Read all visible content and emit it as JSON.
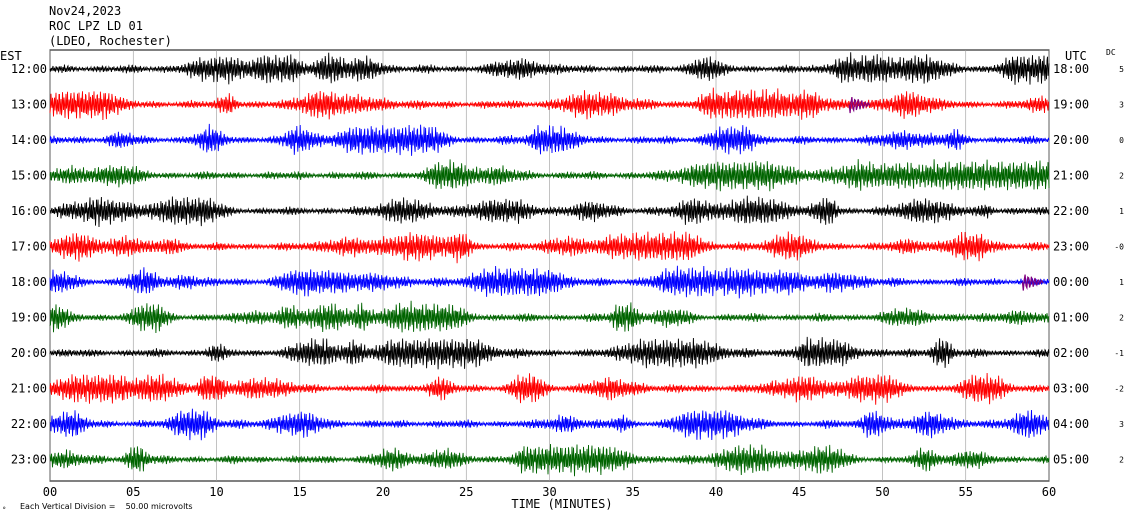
{
  "header": {
    "date": "Nov24,2023",
    "station": "ROC LPZ LD 01",
    "network": "(LDEO, Rochester)"
  },
  "left_axis_label": "EST",
  "right_axis_label": "UTC",
  "dc_label": "DC",
  "footer_scale": "Each Vertical Division =    50.00 microvolts",
  "chart_data": {
    "type": "line",
    "title": "",
    "xlabel": "TIME (MINUTES)",
    "xlim": [
      0,
      60
    ],
    "x_ticks": [
      "00",
      "05",
      "10",
      "15",
      "20",
      "25",
      "30",
      "35",
      "40",
      "45",
      "50",
      "55",
      "60"
    ],
    "x_tick_values": [
      0,
      5,
      10,
      15,
      20,
      25,
      30,
      35,
      40,
      45,
      50,
      55,
      60
    ],
    "grid": "vertical",
    "scale_microvolts_per_division": 50.0,
    "rows": [
      {
        "est": "12:00",
        "utc": "18:00",
        "dc": "5",
        "color": "#000000"
      },
      {
        "est": "13:00",
        "utc": "19:00",
        "dc": "3",
        "color": "#ff0000"
      },
      {
        "est": "14:00",
        "utc": "20:00",
        "dc": "0",
        "color": "#0000ff"
      },
      {
        "est": "15:00",
        "utc": "21:00",
        "dc": "2",
        "color": "#006400"
      },
      {
        "est": "16:00",
        "utc": "22:00",
        "dc": "1",
        "color": "#000000"
      },
      {
        "est": "17:00",
        "utc": "23:00",
        "dc": "-0",
        "color": "#ff0000"
      },
      {
        "est": "18:00",
        "utc": "00:00",
        "dc": "1",
        "color": "#0000ff"
      },
      {
        "est": "19:00",
        "utc": "01:00",
        "dc": "2",
        "color": "#006400"
      },
      {
        "est": "20:00",
        "utc": "02:00",
        "dc": "-1",
        "color": "#000000"
      },
      {
        "est": "21:00",
        "utc": "03:00",
        "dc": "-2",
        "color": "#ff0000"
      },
      {
        "est": "22:00",
        "utc": "04:00",
        "dc": "3",
        "color": "#0000ff"
      },
      {
        "est": "23:00",
        "utc": "05:00",
        "dc": "2",
        "color": "#006400"
      }
    ],
    "event_markers": [
      {
        "row": 1,
        "minute": 48.0,
        "color": "#800080"
      },
      {
        "row": 6,
        "minute": 58.4,
        "color": "#800080"
      }
    ]
  }
}
